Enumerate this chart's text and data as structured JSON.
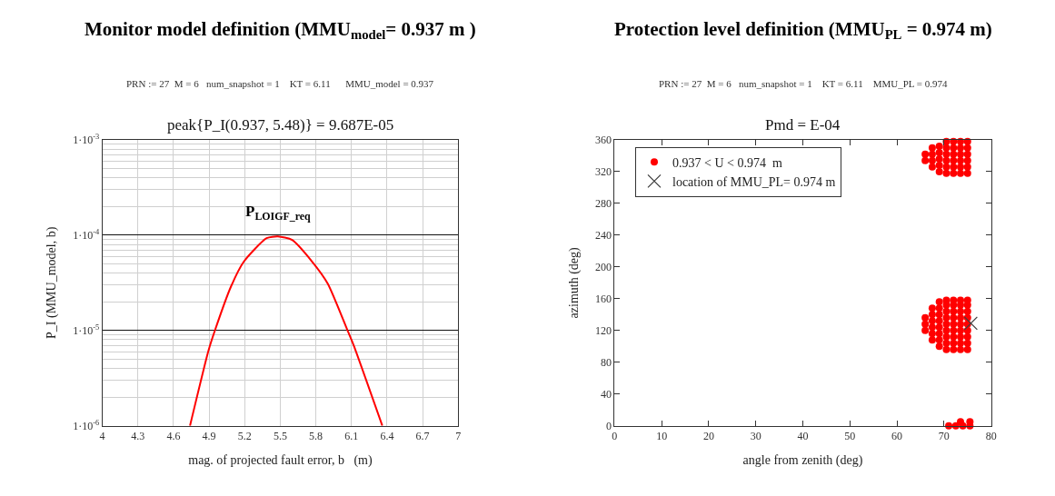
{
  "chart_data": [
    {
      "type": "line",
      "title": "Monitor model definition (MMU$_{model}$= 0.937 m )",
      "subtitle": "PRN := 27  M = 6   num_snapshot = 1    KT = 6.11      MMU_model = 0.937",
      "xlabel": "mag. of projected fault error, b   (m)",
      "ylabel": "P_I (MMU_model, b)",
      "annotations": [
        "peak{P_I(0.937, 5.48)} = 9.687E-05",
        {
          "text": "P$_{LOIGF_req}$",
          "x": 5.48,
          "y": 0.0001
        }
      ],
      "x": [
        4.739,
        4.894,
        4.949,
        5.085,
        5.194,
        5.385,
        5.48,
        5.6,
        5.767,
        5.9,
        6.067,
        6.12,
        6.36
      ],
      "series": [
        {
          "color": "#ff0000",
          "values": [
            1e-06,
            6.1e-06,
            1e-05,
            2.9e-05,
            5.3e-05,
            9.3e-05,
            9.687e-05,
            8.9e-05,
            5.3e-05,
            3.1e-05,
            1e-05,
            6.9e-06,
            1e-06
          ]
        }
      ],
      "log": "y",
      "xlim": [
        4,
        7
      ],
      "xticks": [
        4,
        4.3,
        4.6,
        4.9,
        5.2,
        5.5,
        5.8,
        6.1,
        6.4,
        6.7,
        7
      ],
      "ylim": [
        1e-06,
        0.001
      ],
      "yticks": [
        {
          "value": 1e-06,
          "label": "1·10$^{-6}$"
        },
        {
          "value": 1e-05,
          "label": "1·10$^{-5}$"
        },
        {
          "value": 0.0001,
          "label": "1·10$^{-4}$"
        },
        {
          "value": 0.001,
          "label": "1·10$^{-3}$"
        }
      ],
      "grid": true,
      "marker": "none",
      "line_style": "solid",
      "legend": false
    },
    {
      "type": "scatter",
      "title": "Protection level definition (MMU$_{PL}$ = 0.974 m)",
      "subtitle": "PRN := 27  M = 6   num_snapshot = 1    KT = 6.11    MMU_PL = 0.974",
      "xlabel": "angle from zenith (deg)",
      "ylabel": "azimuth (deg)",
      "annotations": [
        "Pmd = E-04"
      ],
      "series": [
        {
          "name": "0.937 < U < 0.974  m",
          "color": "#ff0000",
          "marker": "circle",
          "x": [
            66,
            66,
            67.5,
            67.5,
            67.5,
            67.5,
            69,
            69,
            69,
            69,
            69,
            70.5,
            70.5,
            70.5,
            70.5,
            70.5,
            70.5,
            72,
            72,
            72,
            72,
            72,
            72,
            73.5,
            73.5,
            73.5,
            73.5,
            73.5,
            73.5,
            75,
            75,
            75,
            75,
            75,
            75,
            66,
            66,
            66,
            67.5,
            67.5,
            67.5,
            67.5,
            67.5,
            67.5,
            69,
            69,
            69,
            69,
            69,
            69,
            69,
            69,
            70.5,
            70.5,
            70.5,
            70.5,
            70.5,
            70.5,
            70.5,
            70.5,
            70.5,
            72,
            72,
            72,
            72,
            72,
            72,
            72,
            72,
            72,
            73.5,
            73.5,
            73.5,
            73.5,
            73.5,
            73.5,
            73.5,
            73.5,
            73.5,
            75,
            75,
            75,
            75,
            75,
            75,
            75,
            75,
            75,
            71,
            72.5,
            74,
            75.5,
            73.5,
            75.5
          ],
          "values": [
            334,
            342,
            326,
            334,
            342,
            350,
            320,
            328,
            336,
            344,
            352,
            318,
            326,
            334,
            342,
            350,
            358,
            318,
            326,
            334,
            342,
            350,
            358,
            318,
            326,
            334,
            342,
            350,
            358,
            318,
            326,
            334,
            342,
            350,
            358,
            120,
            128,
            136,
            108,
            116,
            124,
            132,
            140,
            148,
            100,
            108,
            116,
            124,
            132,
            140,
            148,
            156,
            96,
            104,
            112,
            120,
            128,
            136,
            144,
            152,
            158,
            96,
            104,
            112,
            120,
            128,
            136,
            144,
            152,
            158,
            96,
            104,
            112,
            120,
            128,
            136,
            144,
            152,
            158,
            96,
            104,
            112,
            120,
            128,
            136,
            144,
            152,
            158,
            0,
            0,
            0,
            0,
            5,
            5
          ]
        },
        {
          "name": "location of MMU_PL= 0.974 m",
          "color": "#404040",
          "marker": "cross",
          "x": [
            75.7
          ],
          "values": [
            129
          ]
        }
      ],
      "xlim": [
        0,
        80
      ],
      "xticks": [
        0,
        10,
        20,
        30,
        40,
        50,
        60,
        70,
        80
      ],
      "ylim": [
        0,
        360
      ],
      "yticks": [
        0,
        40,
        80,
        120,
        160,
        200,
        240,
        280,
        320,
        360
      ],
      "grid": false,
      "legend": "top left"
    }
  ]
}
